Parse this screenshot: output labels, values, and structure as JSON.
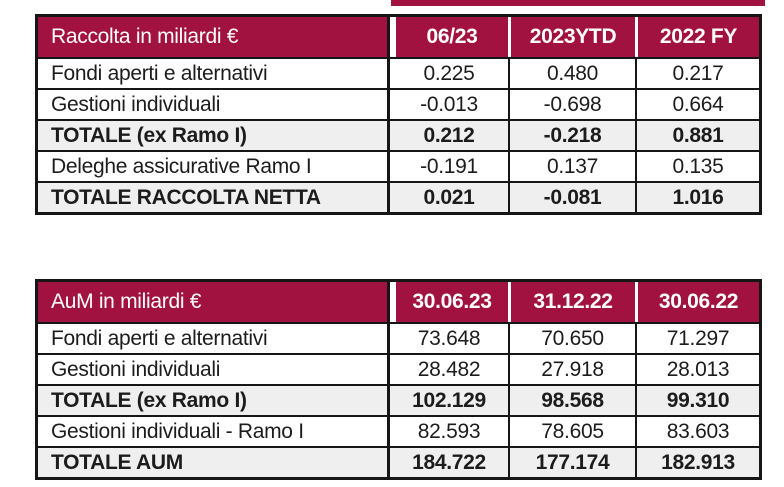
{
  "colors": {
    "header_bg": "#A21240",
    "header_text": "#ffffff",
    "border": "#161616",
    "total_row_bg": "#EFEFEF",
    "body_text": "#1c1c1c"
  },
  "decor": {
    "top_strip_visible": true
  },
  "tables": [
    {
      "title": "Raccolta in miliardi €",
      "columns": [
        "06/23",
        "2023YTD",
        "2022 FY"
      ],
      "rows": [
        {
          "label": "Fondi aperti e alternativi",
          "values": [
            "0.225",
            "0.480",
            "0.217"
          ],
          "total": false
        },
        {
          "label": "Gestioni individuali",
          "values": [
            "-0.013",
            "-0.698",
            "0.664"
          ],
          "total": false
        },
        {
          "label": "TOTALE (ex Ramo I)",
          "values": [
            "0.212",
            "-0.218",
            "0.881"
          ],
          "total": true
        },
        {
          "label": "Deleghe assicurative Ramo I",
          "values": [
            "-0.191",
            "0.137",
            "0.135"
          ],
          "total": false
        },
        {
          "label": "TOTALE RACCOLTA NETTA",
          "values": [
            "0.021",
            "-0.081",
            "1.016"
          ],
          "total": true
        }
      ]
    },
    {
      "title": "AuM in miliardi €",
      "columns": [
        "30.06.23",
        "31.12.22",
        "30.06.22"
      ],
      "rows": [
        {
          "label": "Fondi aperti e alternativi",
          "values": [
            "73.648",
            "70.650",
            "71.297"
          ],
          "total": false
        },
        {
          "label": "Gestioni individuali",
          "values": [
            "28.482",
            "27.918",
            "28.013"
          ],
          "total": false
        },
        {
          "label": "TOTALE (ex Ramo I)",
          "values": [
            "102.129",
            "98.568",
            "99.310"
          ],
          "total": true
        },
        {
          "label": "Gestioni individuali - Ramo I",
          "values": [
            "82.593",
            "78.605",
            "83.603"
          ],
          "total": false
        },
        {
          "label": "TOTALE AUM",
          "values": [
            "184.722",
            "177.174",
            "182.913"
          ],
          "total": true
        }
      ]
    }
  ]
}
